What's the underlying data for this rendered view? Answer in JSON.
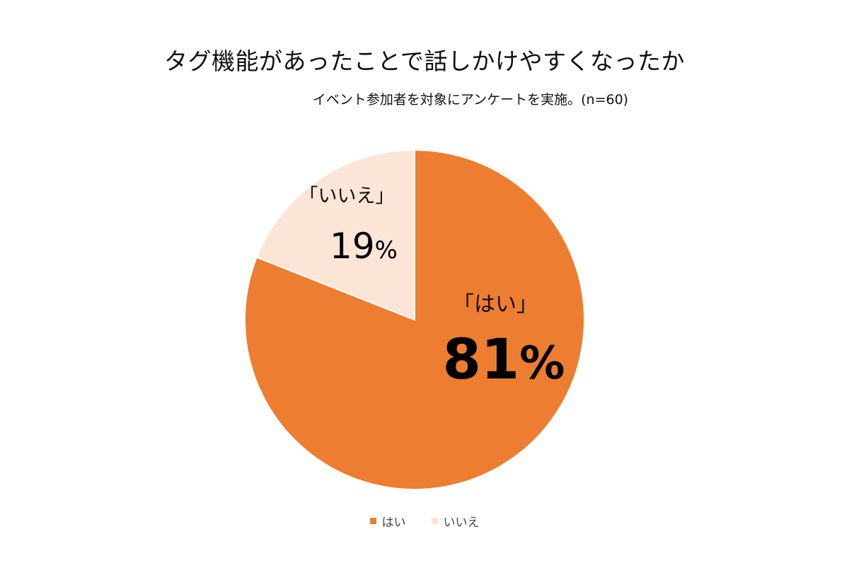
{
  "chart_data": {
    "type": "pie",
    "title": "タグ機能があったことで話しかけやすくなったか",
    "subtitle": "イベント参加者を対象にアンケートを実施。(n=60)",
    "slices": [
      {
        "name": "はい",
        "value": 81,
        "label": "「はい」",
        "value_label": "81",
        "pct_sign": "%",
        "color": "#ED7D31"
      },
      {
        "name": "いいえ",
        "value": 19,
        "label": "「いいえ」",
        "value_label": "19",
        "pct_sign": "%",
        "color": "#FBE5D6"
      }
    ],
    "legend": [
      "はい",
      "いいえ"
    ],
    "legend_position": "bottom"
  }
}
